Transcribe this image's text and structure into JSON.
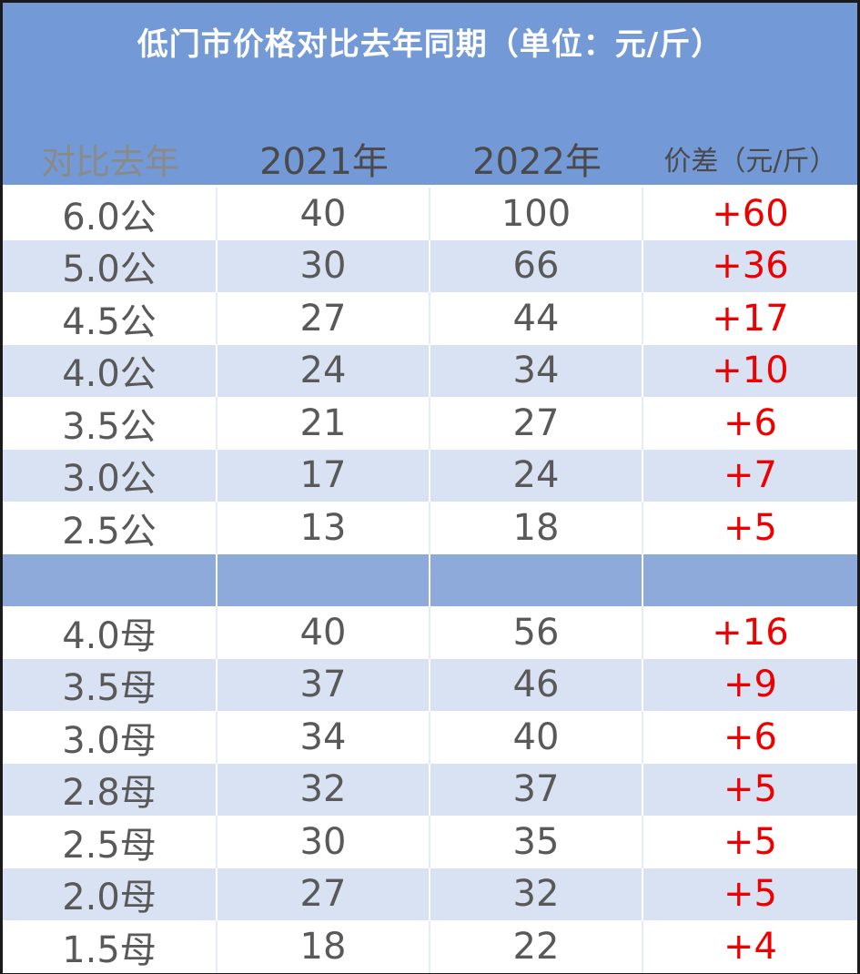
{
  "title": "低门市价格对比去年同期（单位：元/斤）",
  "headers": [
    "对比去年",
    "2021年",
    "2022年",
    "价差（元/斤）"
  ],
  "colors": {
    "banner": "#7399d6",
    "row_alt": "#d9e2f3",
    "separator": "#8eaadb",
    "diff_text": "#ee0000",
    "cell_text": "#595959"
  },
  "rows": [
    {
      "spec": "6.0公",
      "y2021": "40",
      "y2022": "100",
      "diff": "+60"
    },
    {
      "spec": "5.0公",
      "y2021": "30",
      "y2022": "66",
      "diff": "+36"
    },
    {
      "spec": "4.5公",
      "y2021": "27",
      "y2022": "44",
      "diff": "+17"
    },
    {
      "spec": "4.0公",
      "y2021": "24",
      "y2022": "34",
      "diff": "+10"
    },
    {
      "spec": "3.5公",
      "y2021": "21",
      "y2022": "27",
      "diff": "+6"
    },
    {
      "spec": "3.0公",
      "y2021": "17",
      "y2022": "24",
      "diff": "+7"
    },
    {
      "spec": "2.5公",
      "y2021": "13",
      "y2022": "18",
      "diff": "+5"
    },
    {
      "spec": "",
      "y2021": "",
      "y2022": "",
      "diff": ""
    },
    {
      "spec": "4.0母",
      "y2021": "40",
      "y2022": "56",
      "diff": "+16"
    },
    {
      "spec": "3.5母",
      "y2021": "37",
      "y2022": "46",
      "diff": "+9"
    },
    {
      "spec": "3.0母",
      "y2021": "34",
      "y2022": "40",
      "diff": "+6"
    },
    {
      "spec": "2.8母",
      "y2021": "32",
      "y2022": "37",
      "diff": "+5"
    },
    {
      "spec": "2.5母",
      "y2021": "30",
      "y2022": "35",
      "diff": "+5"
    },
    {
      "spec": "2.0母",
      "y2021": "27",
      "y2022": "32",
      "diff": "+5"
    },
    {
      "spec": "1.5母",
      "y2021": "18",
      "y2022": "22",
      "diff": "+4"
    }
  ]
}
